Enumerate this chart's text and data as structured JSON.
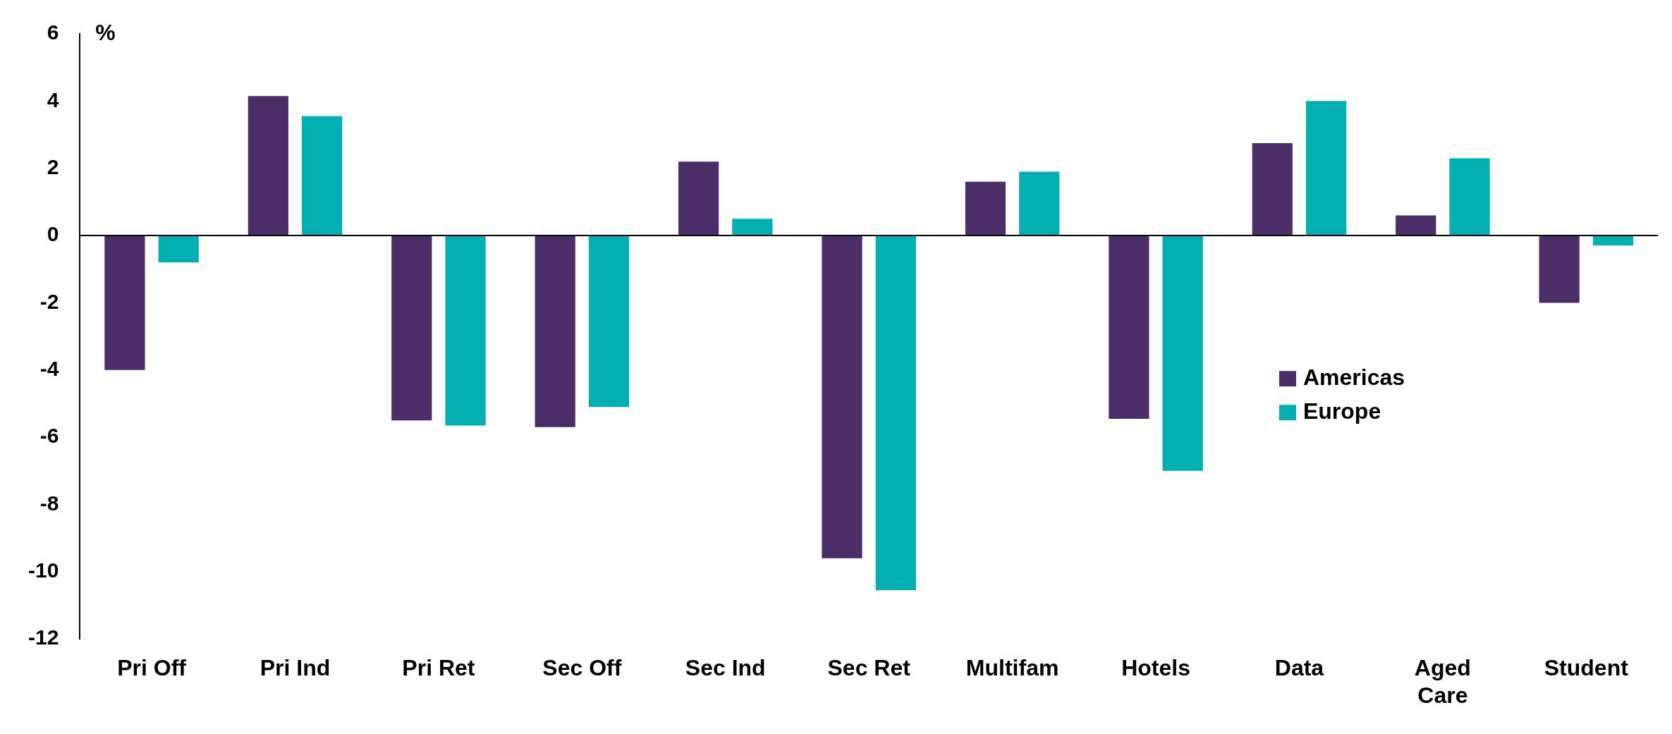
{
  "chart_data": {
    "type": "bar",
    "ylabel": "%",
    "categories": [
      "Pri Off",
      "Pri Ind",
      "Pri Ret",
      "Sec Off",
      "Sec Ind",
      "Sec Ret",
      "Multifam",
      "Hotels",
      "Data",
      "Aged Care",
      "Student"
    ],
    "series": [
      {
        "name": "Americas",
        "color": "#4b2e68",
        "values": [
          -4.0,
          4.15,
          -5.5,
          -5.7,
          2.2,
          -9.6,
          1.6,
          -5.45,
          2.75,
          0.6,
          -2.0
        ]
      },
      {
        "name": "Europe",
        "color": "#00b0b0",
        "values": [
          -0.8,
          3.55,
          -5.65,
          -5.1,
          0.5,
          -10.55,
          1.9,
          -7.0,
          4.0,
          2.3,
          -0.3
        ]
      }
    ],
    "ylim": [
      -12,
      6
    ],
    "yticks": [
      -12,
      -10,
      -8,
      -6,
      -4,
      -2,
      0,
      2,
      4,
      6
    ],
    "legend": "right"
  }
}
